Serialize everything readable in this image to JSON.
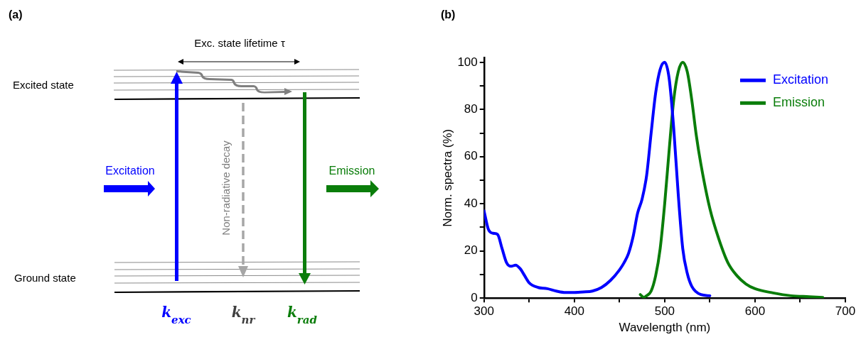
{
  "chart_data": [
    {
      "type": "other",
      "title": "(a)",
      "annotations": [
        "Exc. state lifetime τ",
        "Excited state",
        "Ground state",
        "Excitation",
        "Emission",
        "Non-radiative decay",
        "k$_{exc}$",
        "k$_{nr}$",
        "k$_{rad}$"
      ]
    },
    {
      "type": "line",
      "title": "(b)",
      "xlabel": "Wavelength (nm)",
      "ylabel": "Norm. spectra (%)",
      "xlim": [
        300,
        700
      ],
      "ylim": [
        0,
        102
      ],
      "xticks": [
        300,
        {
          "value": 350,
          "label": null
        },
        400,
        {
          "value": 450,
          "label": null
        },
        500,
        {
          "value": 550,
          "label": null
        },
        600,
        {
          "value": 650,
          "label": null
        },
        700
      ],
      "yticks": [
        0,
        {
          "value": 10,
          "label": null
        },
        20,
        {
          "value": 30,
          "label": null
        },
        40,
        {
          "value": 50,
          "label": null
        },
        60,
        {
          "value": 70,
          "label": null
        },
        80,
        {
          "value": 90,
          "label": null
        },
        100
      ],
      "grid": false,
      "legend": "top right",
      "marker": "none",
      "line_style": "solid",
      "series": [
        {
          "name": "Excitation",
          "color": "#0000ff",
          "x": [
            300,
            305,
            310,
            315,
            320,
            325,
            330,
            335,
            340,
            345,
            350,
            360,
            370,
            380,
            390,
            400,
            410,
            420,
            430,
            440,
            450,
            455,
            460,
            465,
            470,
            475,
            480,
            485,
            490,
            495,
            500,
            505,
            510,
            515,
            520,
            525,
            530,
            540,
            550
          ],
          "values": [
            37,
            29,
            27.5,
            27,
            21,
            15,
            13.5,
            14,
            12.5,
            9.5,
            6.5,
            4.5,
            4,
            3,
            2.4,
            2.4,
            2.6,
            3,
            4.5,
            7.5,
            12,
            15,
            19,
            26,
            36,
            42,
            52,
            70,
            87,
            97,
            100,
            93,
            72,
            44,
            21,
            10.5,
            5,
            1.5,
            1
          ]
        },
        {
          "name": "Emission",
          "color": "#0a7d0a",
          "x": [
            473,
            477,
            480,
            485,
            490,
            495,
            500,
            505,
            510,
            515,
            520,
            525,
            530,
            535,
            540,
            550,
            560,
            570,
            580,
            590,
            600,
            620,
            640,
            660,
            675
          ],
          "values": [
            1.5,
            0.3,
            1,
            3,
            9.5,
            21,
            40,
            63,
            84,
            96,
            100,
            96,
            84,
            69,
            57,
            38,
            25,
            15,
            9.5,
            6,
            4,
            2.2,
            1,
            0.6,
            0.3
          ]
        }
      ]
    }
  ]
}
